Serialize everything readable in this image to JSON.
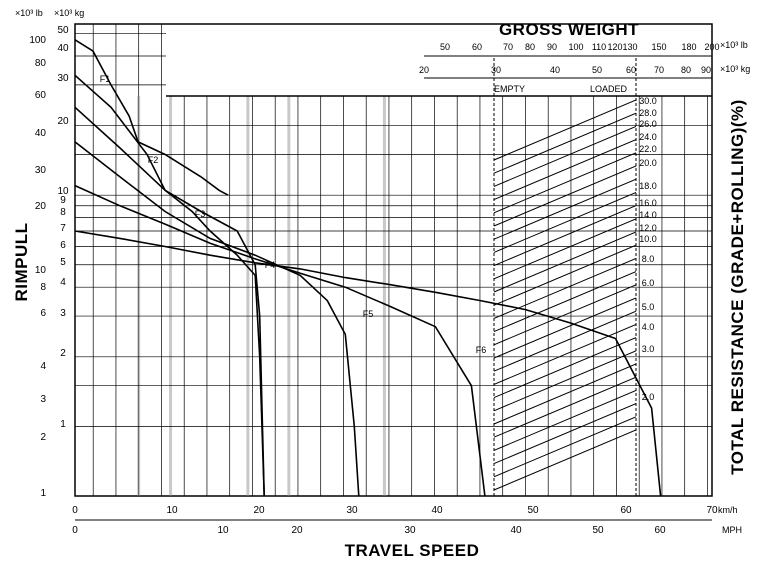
{
  "chart_data": {
    "type": "line",
    "title": "",
    "xlabel": "TRAVEL SPEED",
    "ylabel": "RIMPULL",
    "right_label": "TOTAL RESISTANCE (GRADE+ROLLING)(%)",
    "gross_weight_label": "GROSS WEIGHT",
    "x_unit_primary": "km/h",
    "x_unit_secondary": "MPH",
    "y_unit_lb": "×10³ lb",
    "y_unit_kg": "×10³ kg",
    "gw_unit_lb": "×10³ lb",
    "gw_unit_kg": "×10³ kg",
    "empty_label": "EMPTY",
    "loaded_label": "LOADED",
    "xlim_kmh": [
      0,
      70
    ],
    "x_ticks_kmh": [
      "0",
      "10",
      "20",
      "30",
      "40",
      "50",
      "60",
      "70"
    ],
    "x_ticks_mph": [
      "0",
      "10",
      "20",
      "30",
      "40",
      "50",
      "60",
      "40"
    ],
    "y_ticks_lb": [
      "100",
      "80",
      "60",
      "40",
      "30",
      "20",
      "10",
      "8",
      "6",
      "4",
      "3",
      "2",
      "1"
    ],
    "y_ticks_kg": [
      "50",
      "40",
      "30",
      "20",
      "10",
      "9",
      "8",
      "7",
      "6",
      "5",
      "4",
      "3",
      "2",
      "1"
    ],
    "gw_ticks_lb": [
      "50",
      "60",
      "70",
      "80",
      "90",
      "100",
      "110",
      "120",
      "130",
      "150",
      "180",
      "200"
    ],
    "gw_ticks_kg": [
      "20",
      "30",
      "40",
      "50",
      "60",
      "70",
      "80",
      "90"
    ],
    "resistance_ticks": [
      "30.0",
      "28.0",
      "26.0",
      "24.0",
      "22.0",
      "20.0",
      "18.0",
      "16.0",
      "14.0",
      "12.0",
      "10.0",
      "8.0",
      "6.0",
      "5.0",
      "4.0",
      "3.0",
      "2.0"
    ],
    "series": [
      {
        "name": "F1",
        "x": [
          0,
          2,
          4,
          6,
          7,
          10,
          14,
          16,
          17
        ],
        "y": [
          47,
          42,
          30,
          22,
          17,
          15,
          12,
          10.5,
          10
        ]
      },
      {
        "name": "F2",
        "x": [
          0,
          4,
          8,
          10,
          14,
          18,
          20,
          20.5,
          21
        ],
        "y": [
          33,
          24,
          15,
          10.5,
          8.5,
          7,
          5,
          3,
          0
        ]
      },
      {
        "name": "F3",
        "x": [
          0,
          5,
          10,
          13,
          15,
          18,
          20,
          20.5,
          21
        ],
        "y": [
          24,
          16,
          10.5,
          8.5,
          7,
          5.5,
          4.5,
          2,
          0
        ]
      },
      {
        "name": "F4",
        "x": [
          0,
          5,
          10,
          15,
          20,
          25,
          28,
          30,
          31,
          31.5
        ],
        "y": [
          17,
          12,
          8.5,
          6.5,
          5.5,
          4.5,
          3.5,
          2.5,
          1,
          0
        ]
      },
      {
        "name": "F5",
        "x": [
          0,
          5,
          10,
          15,
          20,
          25,
          30,
          35,
          40,
          44,
          45.5
        ],
        "y": [
          11,
          9,
          7.5,
          6.2,
          5.3,
          4.6,
          4,
          3.3,
          2.7,
          1.5,
          0
        ]
      },
      {
        "name": "F6",
        "x": [
          0,
          5,
          10,
          15,
          20,
          25,
          30,
          35,
          40,
          45,
          50,
          55,
          60,
          64,
          65
        ],
        "y": [
          7,
          6.5,
          6,
          5.5,
          5.1,
          4.8,
          4.4,
          4.1,
          3.8,
          3.5,
          3.2,
          2.8,
          2.4,
          1.2,
          0
        ]
      }
    ],
    "grid": true
  }
}
